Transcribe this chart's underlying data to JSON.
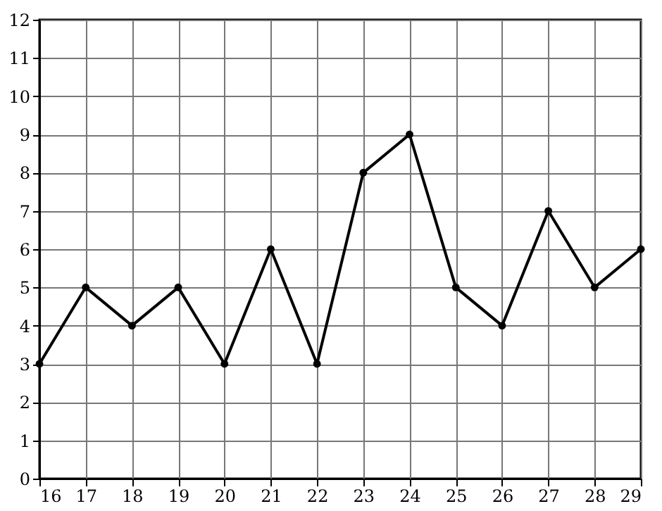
{
  "chart_data": {
    "type": "line",
    "x": [
      16,
      17,
      18,
      19,
      20,
      21,
      22,
      23,
      24,
      25,
      26,
      27,
      28,
      29
    ],
    "values": [
      3,
      5,
      4,
      5,
      3,
      6,
      3,
      8,
      9,
      5,
      4,
      7,
      5,
      6
    ],
    "color": "#000000",
    "marker": "circle",
    "line_style": "solid",
    "grid": true,
    "xlim": [
      16,
      29
    ],
    "xticks": [
      16,
      17,
      18,
      19,
      20,
      21,
      22,
      23,
      24,
      25,
      26,
      27,
      28,
      29
    ],
    "ylim": [
      0,
      12
    ],
    "yticks": [
      0,
      1,
      2,
      3,
      4,
      5,
      6,
      7,
      8,
      9,
      10,
      11,
      12
    ]
  }
}
